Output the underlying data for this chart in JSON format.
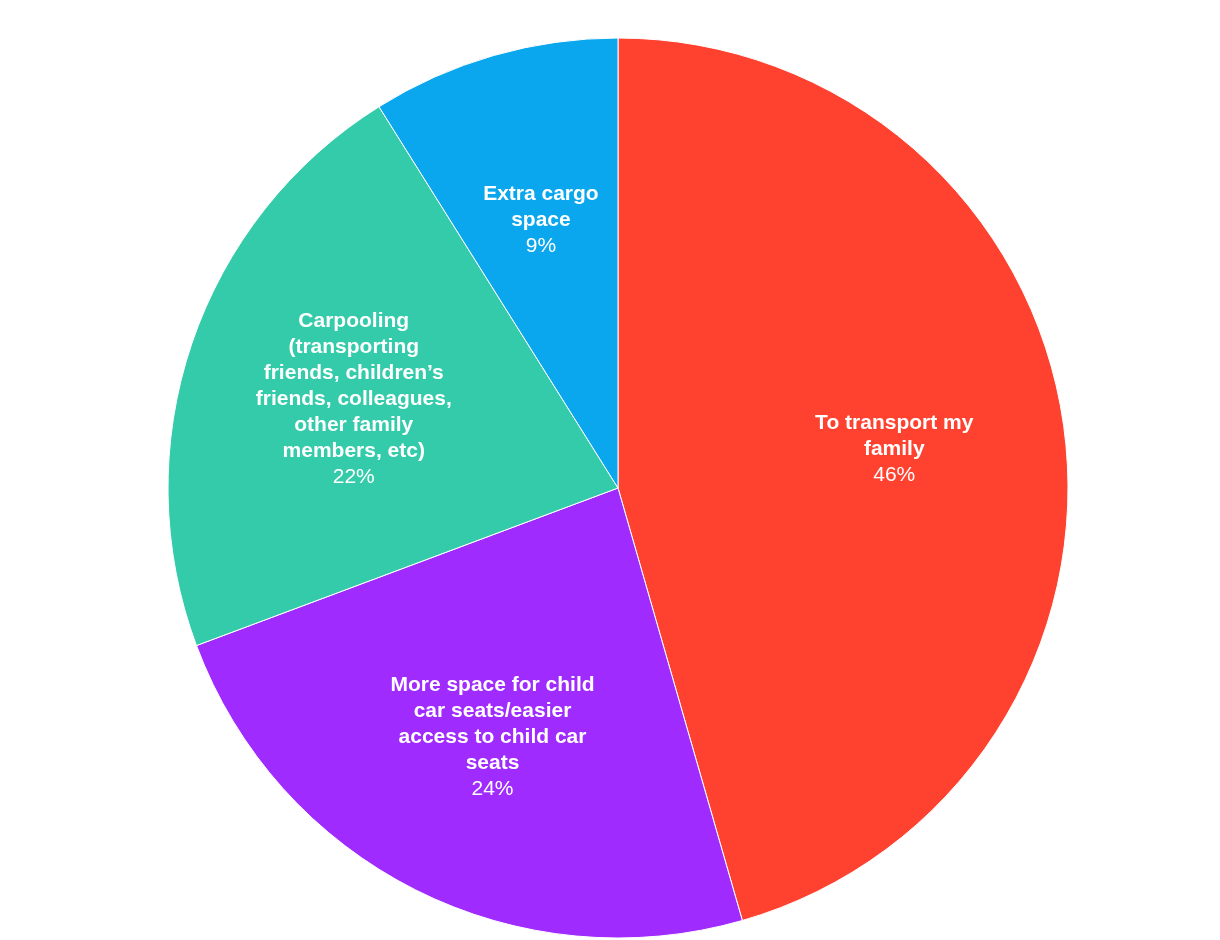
{
  "chart_data": {
    "type": "pie",
    "categories": [
      "To transport my family",
      "More space for child car seats/easier access to child car seats",
      "Carpooling (transporting friends, children’s friends, colleagues, other family members, etc)",
      "Extra cargo space"
    ],
    "values": [
      46,
      24,
      22,
      9
    ],
    "colors": [
      "#ff4130",
      "#9f2bff",
      "#33cbaa",
      "#0aa6ee"
    ],
    "value_labels": [
      "46%",
      "24%",
      "22%",
      "9%"
    ]
  }
}
